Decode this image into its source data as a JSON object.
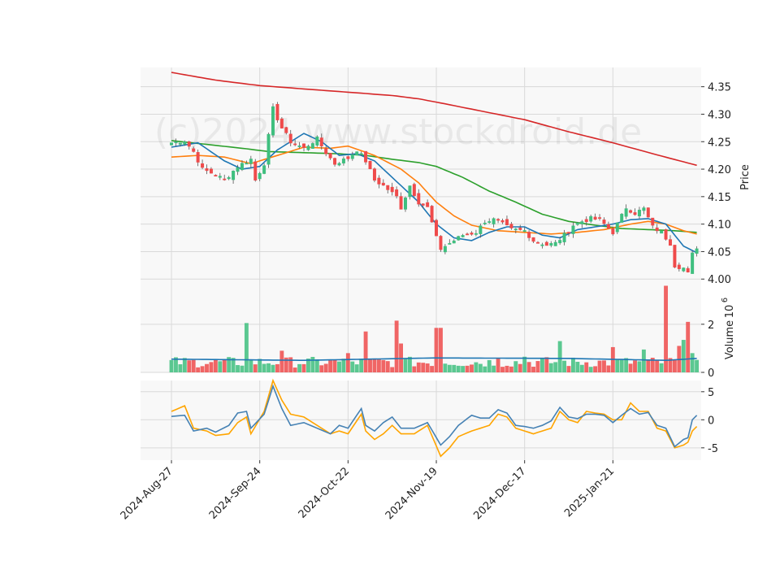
{
  "chart_data": {
    "type": "candlestick",
    "watermark": "(c)2024 www.stockdroid.de",
    "colors": {
      "up": "#3fbf7f",
      "down": "#ef4b4b",
      "panel_bg": "#f8f8f8",
      "grid": "#d9d9d9",
      "sma_short": "#1f77b4",
      "sma_mid": "#ff7f0e",
      "sma_long": "#2ca02c",
      "sma_200": "#d62728",
      "volume_avg": "#1f77b4",
      "osc_a": "#4682b4",
      "osc_b": "#ffa500"
    },
    "x_tick_labels": [
      "2024-Aug-27",
      "2024-Sep-24",
      "2024-Oct-22",
      "2024-Nov-19",
      "2024-Dec-17",
      "2025-Jan-21"
    ],
    "x_tick_index": [
      0,
      20,
      40,
      60,
      80,
      100
    ],
    "x_range": [
      -7,
      120
    ],
    "price_panel": {
      "ylabel": "Price",
      "ylim": [
        3.99,
        4.385
      ],
      "yticks": [
        4.0,
        4.05,
        4.1,
        4.15,
        4.2,
        4.25,
        4.3,
        4.35
      ],
      "ytick_labels": [
        "4.00",
        "4.05",
        "4.10",
        "4.15",
        "4.20",
        "4.25",
        "4.30",
        "4.35"
      ],
      "close_anchors": [
        [
          0,
          4.248
        ],
        [
          3,
          4.252
        ],
        [
          5,
          4.232
        ],
        [
          7,
          4.2
        ],
        [
          10,
          4.19
        ],
        [
          12,
          4.18
        ],
        [
          15,
          4.205
        ],
        [
          18,
          4.218
        ],
        [
          19,
          4.18
        ],
        [
          21,
          4.21
        ],
        [
          23,
          4.31
        ],
        [
          25,
          4.275
        ],
        [
          27,
          4.25
        ],
        [
          30,
          4.238
        ],
        [
          33,
          4.255
        ],
        [
          35,
          4.23
        ],
        [
          37,
          4.21
        ],
        [
          40,
          4.22
        ],
        [
          42,
          4.235
        ],
        [
          44,
          4.215
        ],
        [
          46,
          4.18
        ],
        [
          48,
          4.17
        ],
        [
          51,
          4.15
        ],
        [
          52,
          4.13
        ],
        [
          54,
          4.17
        ],
        [
          56,
          4.14
        ],
        [
          58,
          4.13
        ],
        [
          60,
          4.075
        ],
        [
          61,
          4.055
        ],
        [
          64,
          4.07
        ],
        [
          66,
          4.08
        ],
        [
          69,
          4.085
        ],
        [
          71,
          4.105
        ],
        [
          73,
          4.108
        ],
        [
          75,
          4.1
        ],
        [
          77,
          4.09
        ],
        [
          80,
          4.088
        ],
        [
          82,
          4.07
        ],
        [
          85,
          4.062
        ],
        [
          87,
          4.065
        ],
        [
          89,
          4.08
        ],
        [
          91,
          4.098
        ],
        [
          93,
          4.105
        ],
        [
          95,
          4.11
        ],
        [
          97,
          4.108
        ],
        [
          100,
          4.085
        ],
        [
          103,
          4.13
        ],
        [
          105,
          4.12
        ],
        [
          107,
          4.128
        ],
        [
          109,
          4.095
        ],
        [
          111,
          4.085
        ],
        [
          113,
          4.065
        ],
        [
          114,
          4.025
        ],
        [
          116,
          4.02
        ],
        [
          117,
          4.01
        ],
        [
          118,
          4.045
        ],
        [
          119,
          4.058
        ]
      ],
      "sma_short_anchors": [
        [
          0,
          4.24
        ],
        [
          6,
          4.248
        ],
        [
          12,
          4.215
        ],
        [
          16,
          4.2
        ],
        [
          20,
          4.205
        ],
        [
          24,
          4.235
        ],
        [
          30,
          4.265
        ],
        [
          34,
          4.25
        ],
        [
          38,
          4.225
        ],
        [
          42,
          4.228
        ],
        [
          46,
          4.215
        ],
        [
          52,
          4.17
        ],
        [
          56,
          4.14
        ],
        [
          60,
          4.1
        ],
        [
          64,
          4.075
        ],
        [
          68,
          4.07
        ],
        [
          72,
          4.085
        ],
        [
          76,
          4.095
        ],
        [
          80,
          4.095
        ],
        [
          84,
          4.08
        ],
        [
          88,
          4.075
        ],
        [
          92,
          4.09
        ],
        [
          96,
          4.095
        ],
        [
          100,
          4.1
        ],
        [
          104,
          4.108
        ],
        [
          108,
          4.11
        ],
        [
          112,
          4.1
        ],
        [
          116,
          4.06
        ],
        [
          119,
          4.048
        ]
      ],
      "sma_mid_anchors": [
        [
          0,
          4.222
        ],
        [
          6,
          4.225
        ],
        [
          12,
          4.222
        ],
        [
          18,
          4.21
        ],
        [
          24,
          4.225
        ],
        [
          30,
          4.24
        ],
        [
          36,
          4.238
        ],
        [
          40,
          4.242
        ],
        [
          46,
          4.225
        ],
        [
          52,
          4.2
        ],
        [
          56,
          4.175
        ],
        [
          60,
          4.14
        ],
        [
          64,
          4.115
        ],
        [
          68,
          4.098
        ],
        [
          74,
          4.088
        ],
        [
          80,
          4.085
        ],
        [
          86,
          4.082
        ],
        [
          92,
          4.085
        ],
        [
          98,
          4.09
        ],
        [
          104,
          4.1
        ],
        [
          108,
          4.105
        ],
        [
          112,
          4.1
        ],
        [
          116,
          4.088
        ],
        [
          119,
          4.082
        ]
      ],
      "sma_long_anchors": [
        [
          0,
          4.252
        ],
        [
          8,
          4.245
        ],
        [
          16,
          4.238
        ],
        [
          22,
          4.232
        ],
        [
          30,
          4.23
        ],
        [
          38,
          4.228
        ],
        [
          44,
          4.225
        ],
        [
          50,
          4.218
        ],
        [
          56,
          4.212
        ],
        [
          60,
          4.205
        ],
        [
          66,
          4.185
        ],
        [
          72,
          4.16
        ],
        [
          78,
          4.14
        ],
        [
          84,
          4.118
        ],
        [
          90,
          4.105
        ],
        [
          96,
          4.098
        ],
        [
          102,
          4.092
        ],
        [
          108,
          4.09
        ],
        [
          114,
          4.088
        ],
        [
          119,
          4.085
        ]
      ],
      "sma_200_anchors": [
        [
          0,
          4.376
        ],
        [
          10,
          4.362
        ],
        [
          20,
          4.352
        ],
        [
          30,
          4.346
        ],
        [
          40,
          4.34
        ],
        [
          50,
          4.334
        ],
        [
          56,
          4.328
        ],
        [
          60,
          4.322
        ],
        [
          70,
          4.306
        ],
        [
          80,
          4.29
        ],
        [
          90,
          4.268
        ],
        [
          100,
          4.248
        ],
        [
          110,
          4.226
        ],
        [
          119,
          4.207
        ]
      ]
    },
    "volume_panel": {
      "ylabel": "Volume",
      "scale_label": "10",
      "scale_exponent": "6",
      "ylim": [
        0,
        3.65
      ],
      "yticks": [
        0,
        2
      ],
      "ytick_labels": [
        "0",
        "2"
      ],
      "unit": "millions",
      "spikes": [
        [
          17,
          2.05
        ],
        [
          25,
          0.9
        ],
        [
          36,
          0.5
        ],
        [
          40,
          0.8
        ],
        [
          44,
          1.7
        ],
        [
          51,
          2.15
        ],
        [
          52,
          1.2
        ],
        [
          60,
          1.85
        ],
        [
          61,
          1.85
        ],
        [
          74,
          0.6
        ],
        [
          80,
          0.65
        ],
        [
          88,
          1.3
        ],
        [
          100,
          1.05
        ],
        [
          107,
          0.95
        ],
        [
          112,
          3.6
        ],
        [
          115,
          1.1
        ],
        [
          116,
          1.35
        ],
        [
          117,
          2.1
        ],
        [
          118,
          0.8
        ]
      ],
      "avg_anchors": [
        [
          0,
          0.55
        ],
        [
          30,
          0.5
        ],
        [
          60,
          0.6
        ],
        [
          90,
          0.58
        ],
        [
          112,
          0.5
        ],
        [
          119,
          0.58
        ]
      ]
    },
    "oscillator_panel": {
      "ylim": [
        -7.2,
        7.0
      ],
      "yticks": [
        -5,
        0,
        5
      ],
      "ytick_labels": [
        "-5",
        "0",
        "5"
      ],
      "line_a_anchors": [
        [
          0,
          0.6
        ],
        [
          3,
          0.8
        ],
        [
          5,
          -2.0
        ],
        [
          8,
          -1.5
        ],
        [
          10,
          -2.2
        ],
        [
          13,
          -1.0
        ],
        [
          15,
          1.2
        ],
        [
          17,
          1.5
        ],
        [
          18,
          -1.5
        ],
        [
          21,
          1.0
        ],
        [
          23,
          6.0
        ],
        [
          25,
          2.0
        ],
        [
          27,
          -1.0
        ],
        [
          30,
          -0.5
        ],
        [
          33,
          -1.5
        ],
        [
          36,
          -2.5
        ],
        [
          38,
          -1.0
        ],
        [
          40,
          -1.5
        ],
        [
          43,
          2.0
        ],
        [
          44,
          -1.0
        ],
        [
          46,
          -2.0
        ],
        [
          48,
          -0.5
        ],
        [
          50,
          0.5
        ],
        [
          52,
          -1.5
        ],
        [
          55,
          -1.5
        ],
        [
          58,
          -0.5
        ],
        [
          61,
          -4.5
        ],
        [
          63,
          -3.0
        ],
        [
          65,
          -1.0
        ],
        [
          68,
          0.8
        ],
        [
          70,
          0.3
        ],
        [
          72,
          0.3
        ],
        [
          74,
          1.8
        ],
        [
          76,
          1.2
        ],
        [
          78,
          -1.0
        ],
        [
          80,
          -1.2
        ],
        [
          82,
          -1.5
        ],
        [
          84,
          -1.0
        ],
        [
          86,
          -0.2
        ],
        [
          88,
          2.2
        ],
        [
          90,
          0.5
        ],
        [
          92,
          0.2
        ],
        [
          94,
          1.0
        ],
        [
          96,
          1.0
        ],
        [
          98,
          0.8
        ],
        [
          100,
          -0.5
        ],
        [
          102,
          0.8
        ],
        [
          104,
          2.0
        ],
        [
          106,
          1.0
        ],
        [
          108,
          1.3
        ],
        [
          110,
          -1.0
        ],
        [
          112,
          -1.5
        ],
        [
          114,
          -4.8
        ],
        [
          116,
          -3.5
        ],
        [
          117,
          -3.2
        ],
        [
          118,
          0.0
        ],
        [
          119,
          0.8
        ]
      ],
      "line_b_anchors": [
        [
          0,
          1.5
        ],
        [
          3,
          2.5
        ],
        [
          5,
          -1.5
        ],
        [
          8,
          -2.0
        ],
        [
          10,
          -2.8
        ],
        [
          13,
          -2.5
        ],
        [
          15,
          -0.5
        ],
        [
          17,
          0.5
        ],
        [
          18,
          -2.5
        ],
        [
          21,
          1.5
        ],
        [
          23,
          7.0
        ],
        [
          25,
          3.5
        ],
        [
          27,
          1.0
        ],
        [
          30,
          0.5
        ],
        [
          33,
          -1.0
        ],
        [
          36,
          -2.5
        ],
        [
          38,
          -2.0
        ],
        [
          40,
          -2.5
        ],
        [
          43,
          1.0
        ],
        [
          44,
          -2.0
        ],
        [
          46,
          -3.5
        ],
        [
          48,
          -2.5
        ],
        [
          50,
          -1.0
        ],
        [
          52,
          -2.5
        ],
        [
          55,
          -2.5
        ],
        [
          58,
          -1.0
        ],
        [
          61,
          -6.5
        ],
        [
          63,
          -5.0
        ],
        [
          65,
          -3.0
        ],
        [
          68,
          -2.0
        ],
        [
          70,
          -1.5
        ],
        [
          72,
          -1.0
        ],
        [
          74,
          1.0
        ],
        [
          76,
          0.5
        ],
        [
          78,
          -1.5
        ],
        [
          80,
          -2.0
        ],
        [
          82,
          -2.5
        ],
        [
          84,
          -2.0
        ],
        [
          86,
          -1.5
        ],
        [
          88,
          1.5
        ],
        [
          90,
          0.0
        ],
        [
          92,
          -0.5
        ],
        [
          94,
          1.5
        ],
        [
          96,
          1.2
        ],
        [
          98,
          1.0
        ],
        [
          100,
          0.0
        ],
        [
          102,
          0.0
        ],
        [
          104,
          3.0
        ],
        [
          106,
          1.5
        ],
        [
          108,
          1.5
        ],
        [
          110,
          -1.5
        ],
        [
          112,
          -2.0
        ],
        [
          114,
          -5.0
        ],
        [
          116,
          -4.5
        ],
        [
          117,
          -4.0
        ],
        [
          118,
          -2.0
        ],
        [
          119,
          -1.2
        ]
      ]
    }
  }
}
